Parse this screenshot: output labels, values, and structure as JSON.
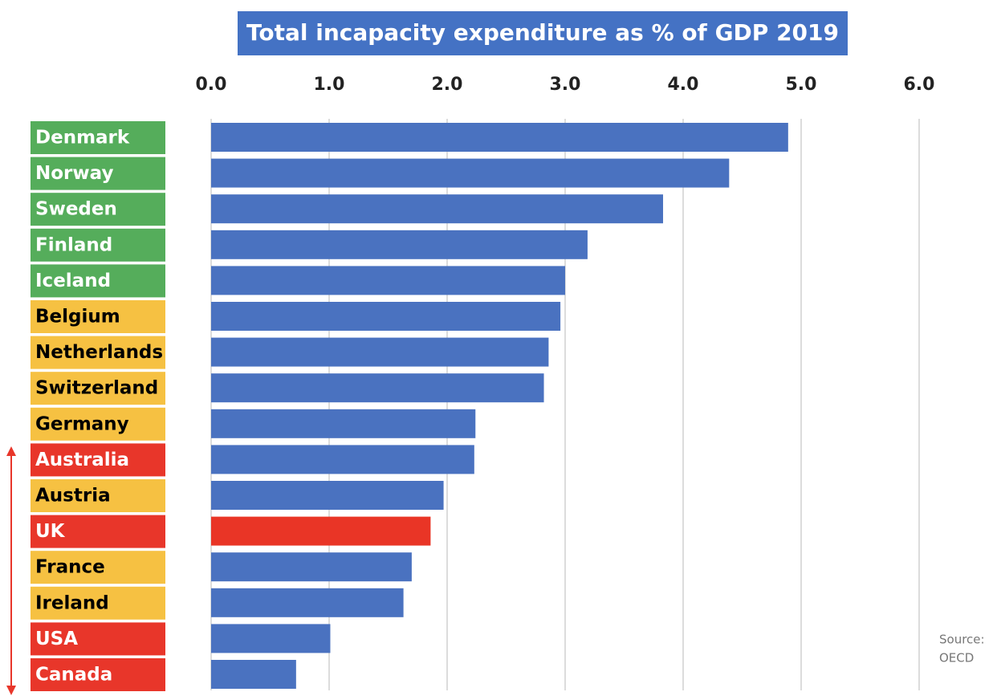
{
  "chart_data": {
    "type": "bar",
    "orientation": "horizontal",
    "title": "Total incapacity expenditure as % of GDP 2019",
    "categories": [
      "Denmark",
      "Norway",
      "Sweden",
      "Finland",
      "Iceland",
      "Belgium",
      "Netherlands",
      "Switzerland",
      "Germany",
      "Australia",
      "Austria",
      "UK",
      "France",
      "Ireland",
      "USA",
      "Canada"
    ],
    "values": [
      4.89,
      4.39,
      3.83,
      3.19,
      3.0,
      2.96,
      2.86,
      2.82,
      2.24,
      2.23,
      1.97,
      1.86,
      1.7,
      1.63,
      1.01,
      0.72
    ],
    "colors": [
      "#4a72c0",
      "#4a72c0",
      "#4a72c0",
      "#4a72c0",
      "#4a72c0",
      "#4a72c0",
      "#4a72c0",
      "#4a72c0",
      "#4a72c0",
      "#4a72c0",
      "#4a72c0",
      "#e93526",
      "#4a72c0",
      "#4a72c0",
      "#4a72c0",
      "#4a72c0"
    ],
    "label_colors": [
      "#55ad5b",
      "#55ad5b",
      "#55ad5b",
      "#55ad5b",
      "#55ad5b",
      "#f6c142",
      "#f6c142",
      "#f6c142",
      "#f6c142",
      "#e8362a",
      "#f6c142",
      "#e8362a",
      "#f6c142",
      "#f6c142",
      "#e8362a",
      "#e8362a"
    ],
    "label_text_colors": [
      "#fff",
      "#fff",
      "#fff",
      "#fff",
      "#fff",
      "#000",
      "#000",
      "#000",
      "#000",
      "#fff",
      "#000",
      "#fff",
      "#000",
      "#000",
      "#fff",
      "#fff"
    ],
    "xlim": [
      0,
      6
    ],
    "xticks": [
      {
        "value": 0,
        "label": "0.0"
      },
      {
        "value": 1,
        "label": "1.0"
      },
      {
        "value": 2,
        "label": "2.0"
      },
      {
        "value": 3,
        "label": "3.0"
      },
      {
        "value": 4,
        "label": "4.0"
      },
      {
        "value": 5,
        "label": "5.0"
      },
      {
        "value": 6,
        "label": "6.0"
      }
    ],
    "grid": true,
    "source": [
      "Source:",
      "OECD"
    ]
  }
}
